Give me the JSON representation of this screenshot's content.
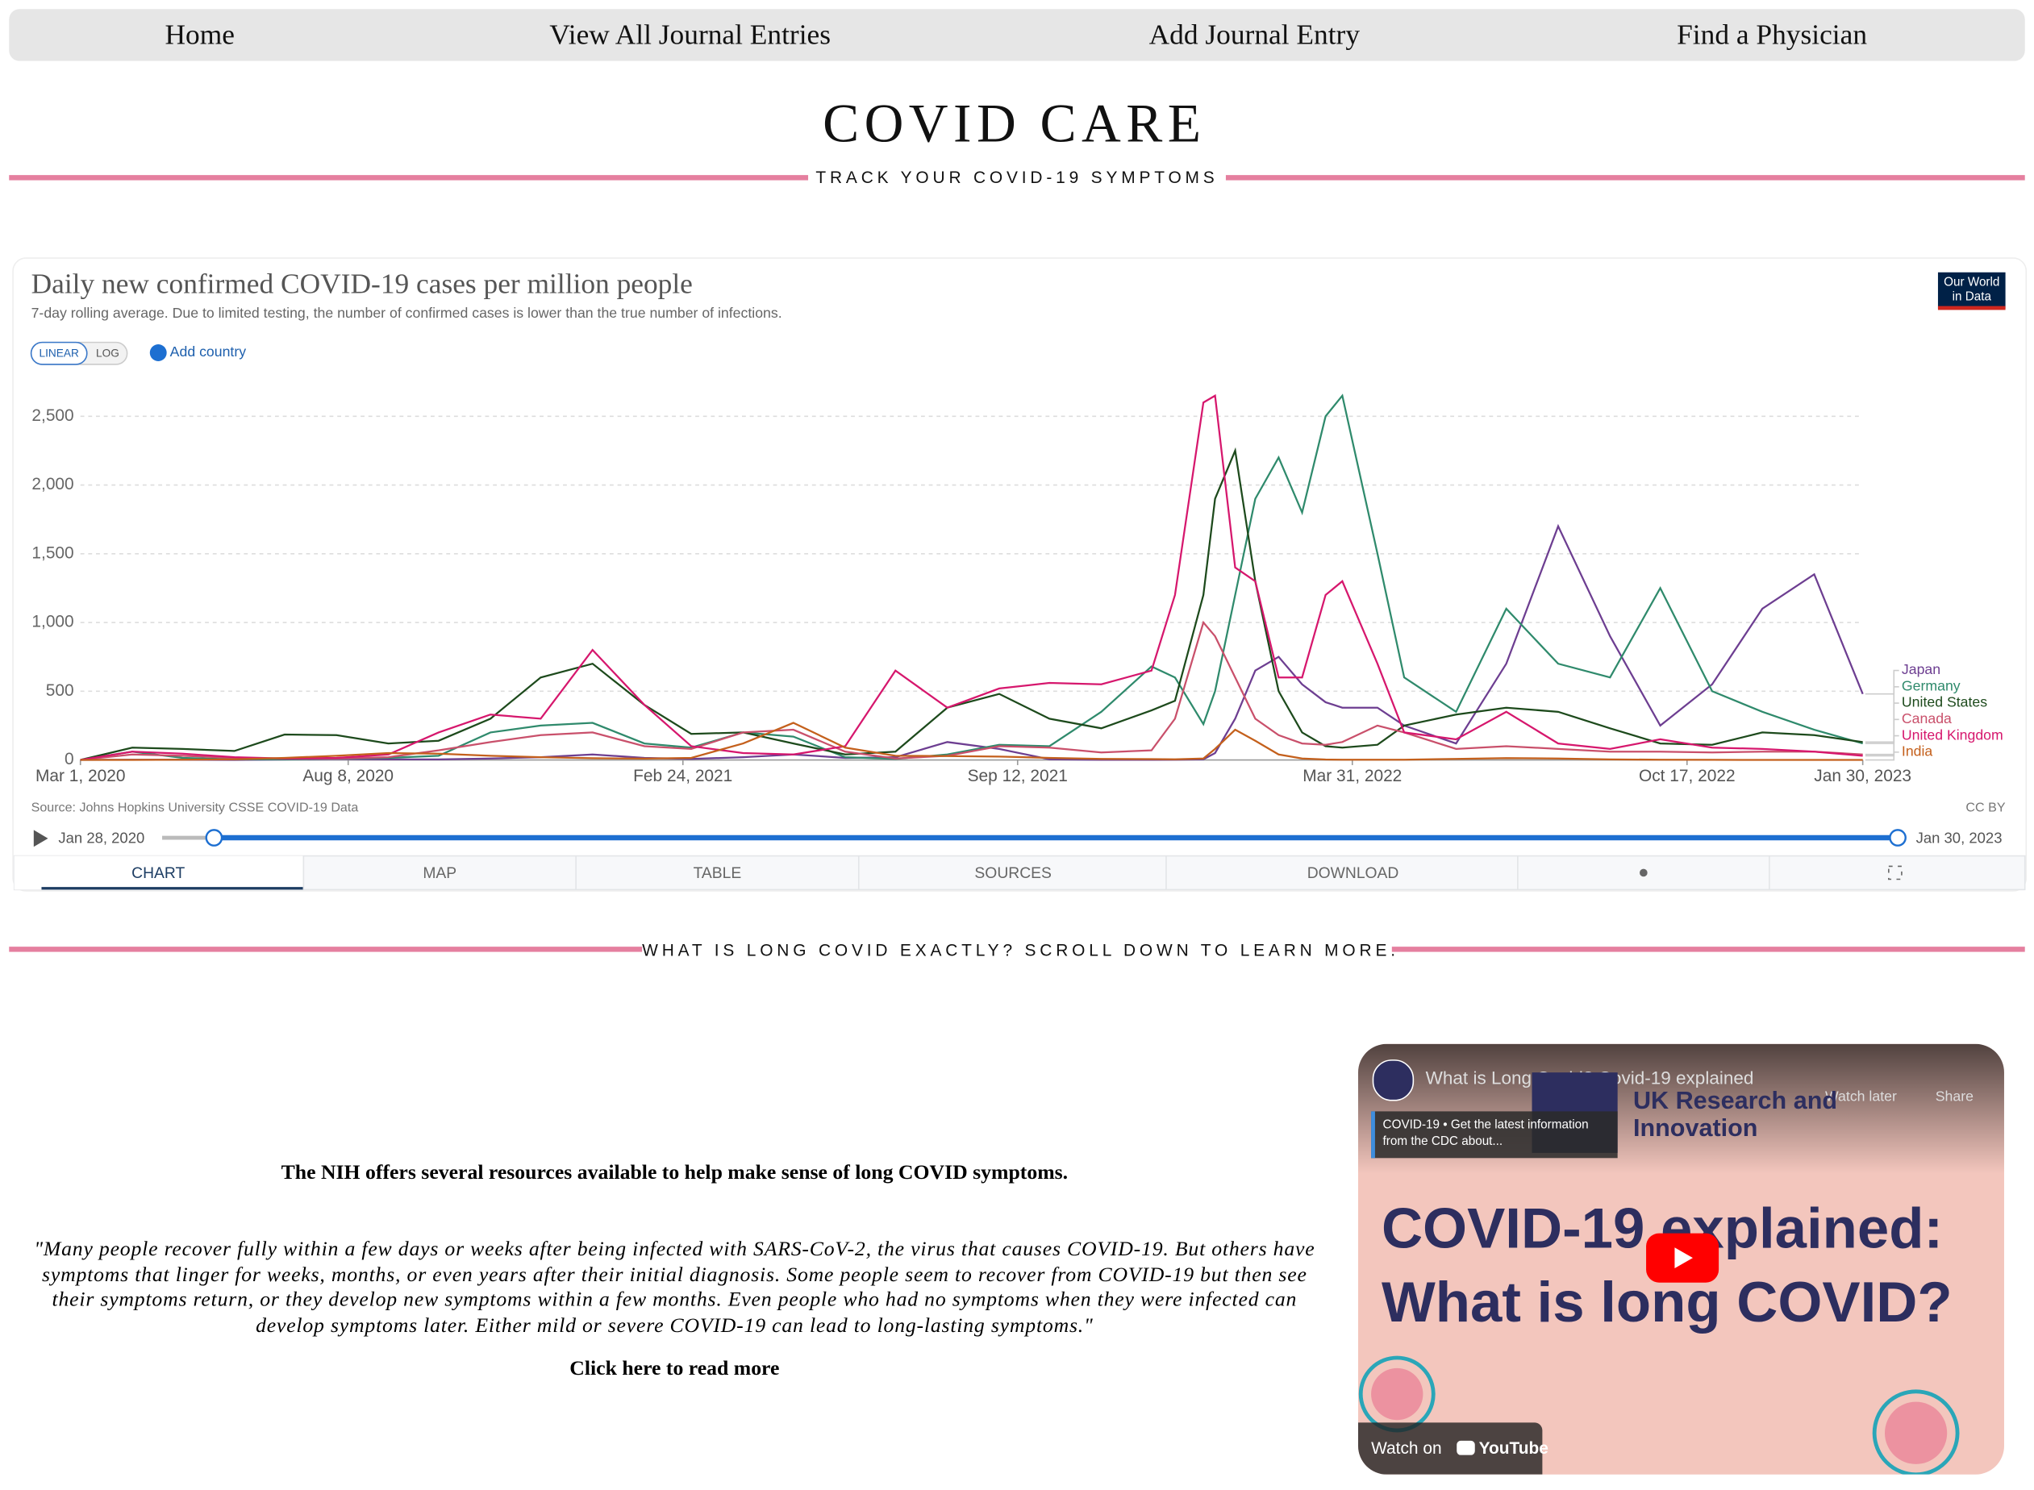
{
  "nav": [
    "Home",
    "View All Journal Entries",
    "Add Journal Entry",
    "Find a Physician"
  ],
  "header": {
    "title": "COVID CARE",
    "subtitle": "TRACK YOUR COVID-19 SYMPTOMS"
  },
  "chart_widget": {
    "scale_buttons": [
      "LINEAR",
      "LOG"
    ],
    "add_country": "Add country",
    "logo": [
      "Our World",
      "in Data"
    ],
    "license": "CC BY",
    "timeline_start": "Jan 28, 2020",
    "timeline_end": "Jan 30, 2023",
    "tabs": [
      "CHART",
      "MAP",
      "TABLE",
      "SOURCES",
      "DOWNLOAD"
    ]
  },
  "chart_data": {
    "type": "line",
    "title": "Daily new confirmed COVID-19 cases per million people",
    "subtitle": "7-day rolling average. Due to limited testing, the number of confirmed cases is lower than the true number of infections.",
    "source": "Source: Johns Hopkins University CSSE COVID-19 Data",
    "x": [
      "2020-03-01",
      "2020-04-01",
      "2020-05-01",
      "2020-06-01",
      "2020-07-01",
      "2020-08-01",
      "2020-09-01",
      "2020-10-01",
      "2020-11-01",
      "2020-12-01",
      "2021-01-01",
      "2021-02-01",
      "2021-03-01",
      "2021-04-01",
      "2021-05-01",
      "2021-06-01",
      "2021-07-01",
      "2021-08-01",
      "2021-09-01",
      "2021-10-01",
      "2021-11-01",
      "2021-12-01",
      "2021-12-15",
      "2022-01-01",
      "2022-01-08",
      "2022-01-20",
      "2022-02-01",
      "2022-02-15",
      "2022-03-01",
      "2022-03-15",
      "2022-03-25",
      "2022-04-15",
      "2022-05-01",
      "2022-06-01",
      "2022-07-01",
      "2022-08-01",
      "2022-09-01",
      "2022-10-01",
      "2022-11-01",
      "2022-12-01",
      "2023-01-01",
      "2023-01-30"
    ],
    "series": [
      {
        "name": "Japan",
        "color": "#6d3e91",
        "values": [
          0,
          2,
          2,
          0,
          3,
          8,
          4,
          4,
          10,
          20,
          40,
          15,
          8,
          20,
          40,
          15,
          20,
          130,
          80,
          5,
          1,
          1,
          2,
          5,
          50,
          300,
          650,
          750,
          550,
          420,
          380,
          380,
          250,
          120,
          700,
          1700,
          900,
          250,
          550,
          1100,
          1350,
          480
        ]
      },
      {
        "name": "Germany",
        "color": "#2f8a6c",
        "values": [
          0,
          60,
          15,
          5,
          5,
          10,
          15,
          30,
          200,
          250,
          270,
          120,
          90,
          200,
          170,
          20,
          8,
          40,
          110,
          100,
          350,
          680,
          600,
          260,
          500,
          1200,
          1900,
          2200,
          1800,
          2500,
          2650,
          1500,
          600,
          350,
          1100,
          700,
          600,
          1250,
          500,
          350,
          220,
          120
        ]
      },
      {
        "name": "United States",
        "color": "#1d4a1c",
        "values": [
          0,
          90,
          80,
          65,
          185,
          180,
          120,
          140,
          300,
          600,
          700,
          400,
          190,
          200,
          120,
          40,
          60,
          380,
          480,
          300,
          230,
          360,
          430,
          1200,
          1900,
          2250,
          1300,
          500,
          200,
          100,
          90,
          110,
          250,
          330,
          380,
          350,
          230,
          120,
          110,
          200,
          180,
          130
        ]
      },
      {
        "name": "Canada",
        "color": "#c9506b",
        "values": [
          0,
          40,
          30,
          15,
          10,
          10,
          20,
          70,
          130,
          180,
          200,
          100,
          80,
          200,
          220,
          60,
          10,
          30,
          100,
          90,
          55,
          70,
          300,
          1000,
          900,
          600,
          300,
          180,
          120,
          110,
          130,
          250,
          200,
          80,
          100,
          80,
          60,
          60,
          55,
          60,
          60,
          40
        ]
      },
      {
        "name": "United Kingdom",
        "color": "#d6176d",
        "values": [
          0,
          60,
          45,
          20,
          10,
          15,
          40,
          200,
          330,
          300,
          800,
          400,
          100,
          50,
          40,
          100,
          650,
          380,
          520,
          560,
          550,
          650,
          1200,
          2600,
          2650,
          1400,
          1300,
          600,
          600,
          1200,
          1300,
          700,
          200,
          150,
          350,
          120,
          80,
          150,
          90,
          80,
          60,
          30
        ]
      },
      {
        "name": "India",
        "color": "#c4601c",
        "values": [
          0,
          0,
          2,
          5,
          15,
          30,
          50,
          45,
          30,
          20,
          12,
          9,
          15,
          120,
          270,
          90,
          30,
          28,
          25,
          15,
          8,
          6,
          5,
          10,
          80,
          220,
          140,
          40,
          10,
          3,
          2,
          2,
          2,
          8,
          13,
          10,
          4,
          2,
          1,
          0,
          0,
          0
        ]
      }
    ],
    "xlim": [
      "2020-03-01",
      "2023-01-30"
    ],
    "xticks": [
      {
        "value": "2020-03-01",
        "label": "Mar 1, 2020"
      },
      {
        "value": "2020-08-08",
        "label": "Aug 8, 2020"
      },
      {
        "value": "2021-02-24",
        "label": "Feb 24, 2021"
      },
      {
        "value": "2021-09-12",
        "label": "Sep 12, 2021"
      },
      {
        "value": "2022-03-31",
        "label": "Mar 31, 2022"
      },
      {
        "value": "2022-10-17",
        "label": "Oct 17, 2022"
      },
      {
        "value": "2023-01-30",
        "label": "Jan 30, 2023"
      }
    ],
    "ylim": [
      0,
      2750
    ],
    "yticks": [
      0,
      500,
      {
        "value": 1000,
        "label": "1,000"
      },
      {
        "value": 1500,
        "label": "1,500"
      },
      {
        "value": 2000,
        "label": "2,000"
      },
      {
        "value": 2500,
        "label": "2,500"
      }
    ],
    "grid": true
  },
  "section_heading": "WHAT IS LONG COVID EXACTLY? SCROLL DOWN TO LEARN MORE.",
  "content": {
    "intro": "The NIH offers several resources available to help make sense of long COVID symptoms.",
    "quote": "\"Many people recover fully within a few days or weeks after being infected with SARS-CoV-2, the virus that causes COVID-19. But others have symptoms that linger for weeks, months, or even years after their initial diagnosis. Some people seem to recover from COVID-19 but then see their symptoms return, or they develop new symptoms within a few months. Even people who had no symptoms when they were infected can develop symptoms later. Either mild or severe COVID-19 can lead to long-lasting symptoms.\"",
    "link": "Click here to read more"
  },
  "video": {
    "title": "What is Long Covid? Covid-19 explained",
    "watch_later": "Watch later",
    "share": "Share",
    "channel": "UK Research and Innovation",
    "info": "COVID-19 • Get the latest information from the CDC about...",
    "headline": "COVID-19 explained: What is long COVID?",
    "watch_on": "Watch on",
    "youtube": "YouTube"
  }
}
